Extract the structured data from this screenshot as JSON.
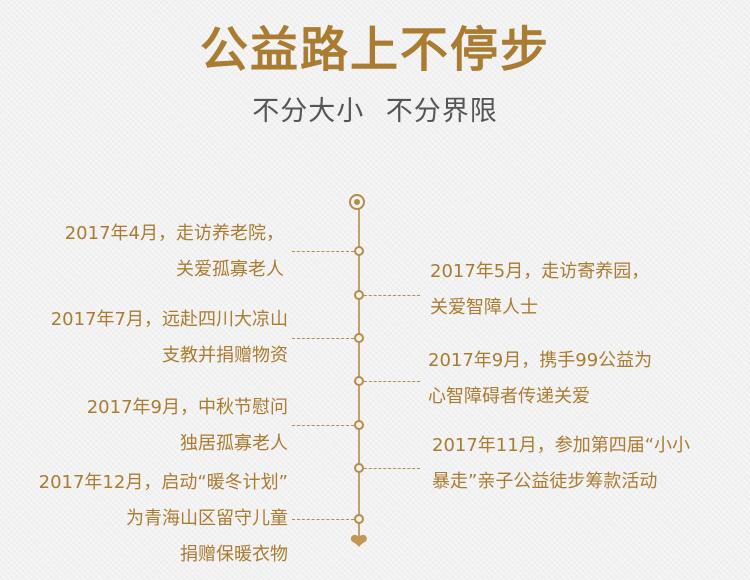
{
  "header": {
    "title": "公益路上不停步",
    "subtitle_part1": "不分大小",
    "subtitle_part2": "不分界限"
  },
  "timeline": {
    "events": [
      {
        "side": "left",
        "line1": "2017年4月，走访养老院，",
        "line2": "关爱孤寡老人"
      },
      {
        "side": "right",
        "line1": "2017年5月，走访寄养园，",
        "line2": "关爱智障人士"
      },
      {
        "side": "left",
        "line1": "2017年7月，远赴四川大凉山",
        "line2": "支教并捐赠物资"
      },
      {
        "side": "right",
        "line1": "2017年9月，携手99公益为",
        "line2": "心智障碍者传递关爱"
      },
      {
        "side": "left",
        "line1": "2017年9月，中秋节慰问",
        "line2": "独居孤寡老人"
      },
      {
        "side": "right",
        "line1": "2017年11月，参加第四届“小小",
        "line2": "暴走”亲子公益徒步筹款活动"
      },
      {
        "side": "left",
        "line1": "2017年12月，启动“暖冬计划”",
        "line2": "为青海山区留守儿童",
        "line3": "捐赠保暖衣物"
      }
    ],
    "end_icon": "heart-icon",
    "accent_color": "#b48c4c"
  }
}
